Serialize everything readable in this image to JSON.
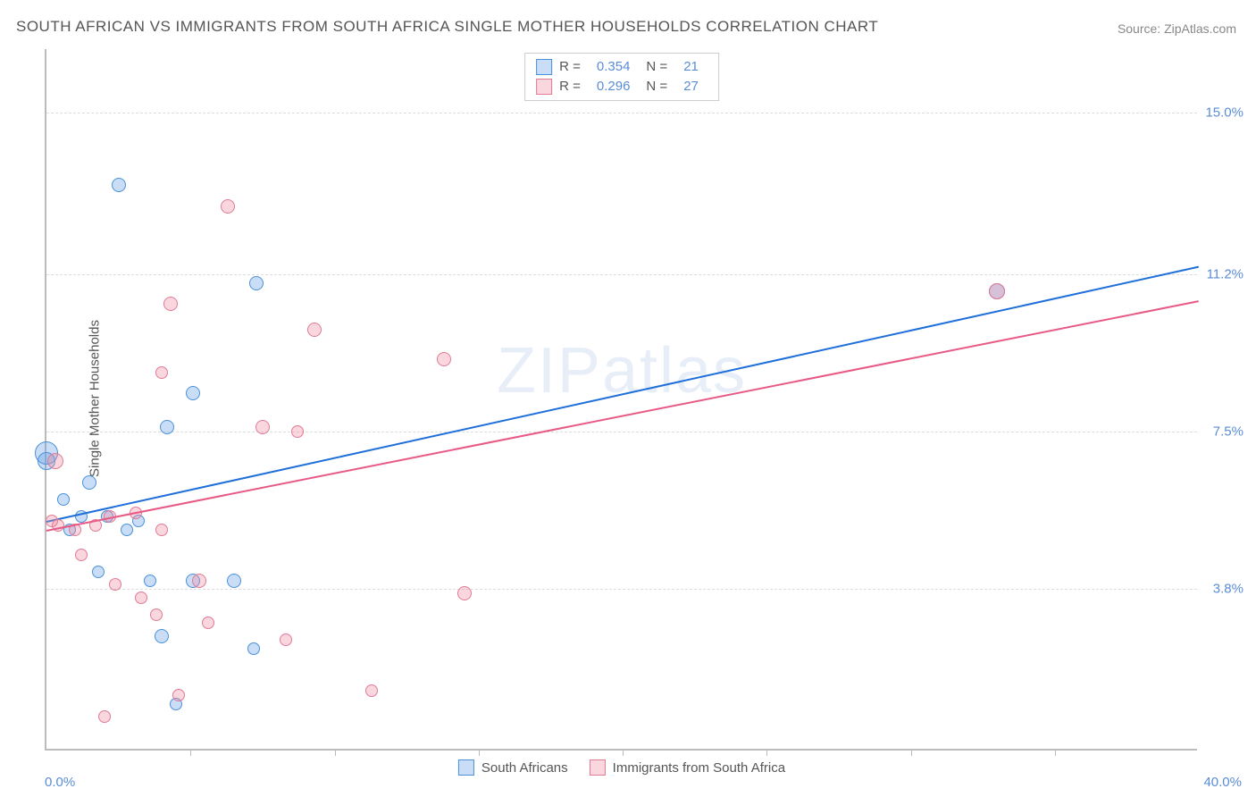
{
  "title": "SOUTH AFRICAN VS IMMIGRANTS FROM SOUTH AFRICA SINGLE MOTHER HOUSEHOLDS CORRELATION CHART",
  "source": "Source: ZipAtlas.com",
  "watermark": "ZIPatlas",
  "ylabel": "Single Mother Households",
  "axes": {
    "xlim": [
      0,
      40
    ],
    "ylim": [
      0,
      16.5
    ],
    "xmin_label": "0.0%",
    "xmax_label": "40.0%",
    "y_gridlines": [
      {
        "value": 3.8,
        "label": "3.8%"
      },
      {
        "value": 7.5,
        "label": "7.5%"
      },
      {
        "value": 11.2,
        "label": "11.2%"
      },
      {
        "value": 15.0,
        "label": "15.0%"
      }
    ],
    "x_ticks": [
      5,
      10,
      15,
      20,
      25,
      30,
      35
    ]
  },
  "colors": {
    "blue_fill": "rgba(100, 160, 230, 0.35)",
    "blue_stroke": "#4a90d9",
    "pink_fill": "rgba(240, 140, 160, 0.35)",
    "pink_stroke": "#e07a95",
    "blue_line": "#1e6fd9",
    "pink_line": "#e85a85",
    "tick_text": "#5a8dd6",
    "title_text": "#555555",
    "grid": "#dddddd"
  },
  "series": [
    {
      "name": "South Africans",
      "color_key": "blue",
      "R": "0.354",
      "N": "21",
      "trend": {
        "x1": 0,
        "y1": 5.4,
        "x2": 40,
        "y2": 11.4
      },
      "points": [
        {
          "x": 2.5,
          "y": 13.3,
          "r": 8
        },
        {
          "x": 7.3,
          "y": 11.0,
          "r": 8
        },
        {
          "x": 0.0,
          "y": 7.0,
          "r": 13
        },
        {
          "x": 0.0,
          "y": 6.8,
          "r": 10
        },
        {
          "x": 5.1,
          "y": 8.4,
          "r": 8
        },
        {
          "x": 1.5,
          "y": 6.3,
          "r": 8
        },
        {
          "x": 4.2,
          "y": 7.6,
          "r": 8
        },
        {
          "x": 0.6,
          "y": 5.9,
          "r": 7
        },
        {
          "x": 1.2,
          "y": 5.5,
          "r": 7
        },
        {
          "x": 2.1,
          "y": 5.5,
          "r": 7
        },
        {
          "x": 3.2,
          "y": 5.4,
          "r": 7
        },
        {
          "x": 1.8,
          "y": 4.2,
          "r": 7
        },
        {
          "x": 3.6,
          "y": 4.0,
          "r": 7
        },
        {
          "x": 5.1,
          "y": 4.0,
          "r": 8
        },
        {
          "x": 6.5,
          "y": 4.0,
          "r": 8
        },
        {
          "x": 4.0,
          "y": 2.7,
          "r": 8
        },
        {
          "x": 7.2,
          "y": 2.4,
          "r": 7
        },
        {
          "x": 4.5,
          "y": 1.1,
          "r": 7
        },
        {
          "x": 33.0,
          "y": 10.8,
          "r": 9
        },
        {
          "x": 0.8,
          "y": 5.2,
          "r": 7
        },
        {
          "x": 2.8,
          "y": 5.2,
          "r": 7
        }
      ]
    },
    {
      "name": "Immigrants from South Africa",
      "color_key": "pink",
      "R": "0.296",
      "N": "27",
      "trend": {
        "x1": 0,
        "y1": 5.2,
        "x2": 40,
        "y2": 10.6
      },
      "points": [
        {
          "x": 6.3,
          "y": 12.8,
          "r": 8
        },
        {
          "x": 4.3,
          "y": 10.5,
          "r": 8
        },
        {
          "x": 9.3,
          "y": 9.9,
          "r": 8
        },
        {
          "x": 4.0,
          "y": 8.9,
          "r": 7
        },
        {
          "x": 13.8,
          "y": 9.2,
          "r": 8
        },
        {
          "x": 7.5,
          "y": 7.6,
          "r": 8
        },
        {
          "x": 8.7,
          "y": 7.5,
          "r": 7
        },
        {
          "x": 0.4,
          "y": 5.3,
          "r": 7
        },
        {
          "x": 1.0,
          "y": 5.2,
          "r": 7
        },
        {
          "x": 1.7,
          "y": 5.3,
          "r": 7
        },
        {
          "x": 2.2,
          "y": 5.5,
          "r": 7
        },
        {
          "x": 3.1,
          "y": 5.6,
          "r": 7
        },
        {
          "x": 4.0,
          "y": 5.2,
          "r": 7
        },
        {
          "x": 1.2,
          "y": 4.6,
          "r": 7
        },
        {
          "x": 2.4,
          "y": 3.9,
          "r": 7
        },
        {
          "x": 3.3,
          "y": 3.6,
          "r": 7
        },
        {
          "x": 5.3,
          "y": 4.0,
          "r": 8
        },
        {
          "x": 3.8,
          "y": 3.2,
          "r": 7
        },
        {
          "x": 5.6,
          "y": 3.0,
          "r": 7
        },
        {
          "x": 14.5,
          "y": 3.7,
          "r": 8
        },
        {
          "x": 8.3,
          "y": 2.6,
          "r": 7
        },
        {
          "x": 4.6,
          "y": 1.3,
          "r": 7
        },
        {
          "x": 11.3,
          "y": 1.4,
          "r": 7
        },
        {
          "x": 2.0,
          "y": 0.8,
          "r": 7
        },
        {
          "x": 33.0,
          "y": 10.8,
          "r": 9
        },
        {
          "x": 0.3,
          "y": 6.8,
          "r": 9
        },
        {
          "x": 0.2,
          "y": 5.4,
          "r": 7
        }
      ]
    }
  ],
  "legend_bottom": [
    {
      "label": "South Africans",
      "color_key": "blue"
    },
    {
      "label": "Immigrants from South Africa",
      "color_key": "pink"
    }
  ]
}
